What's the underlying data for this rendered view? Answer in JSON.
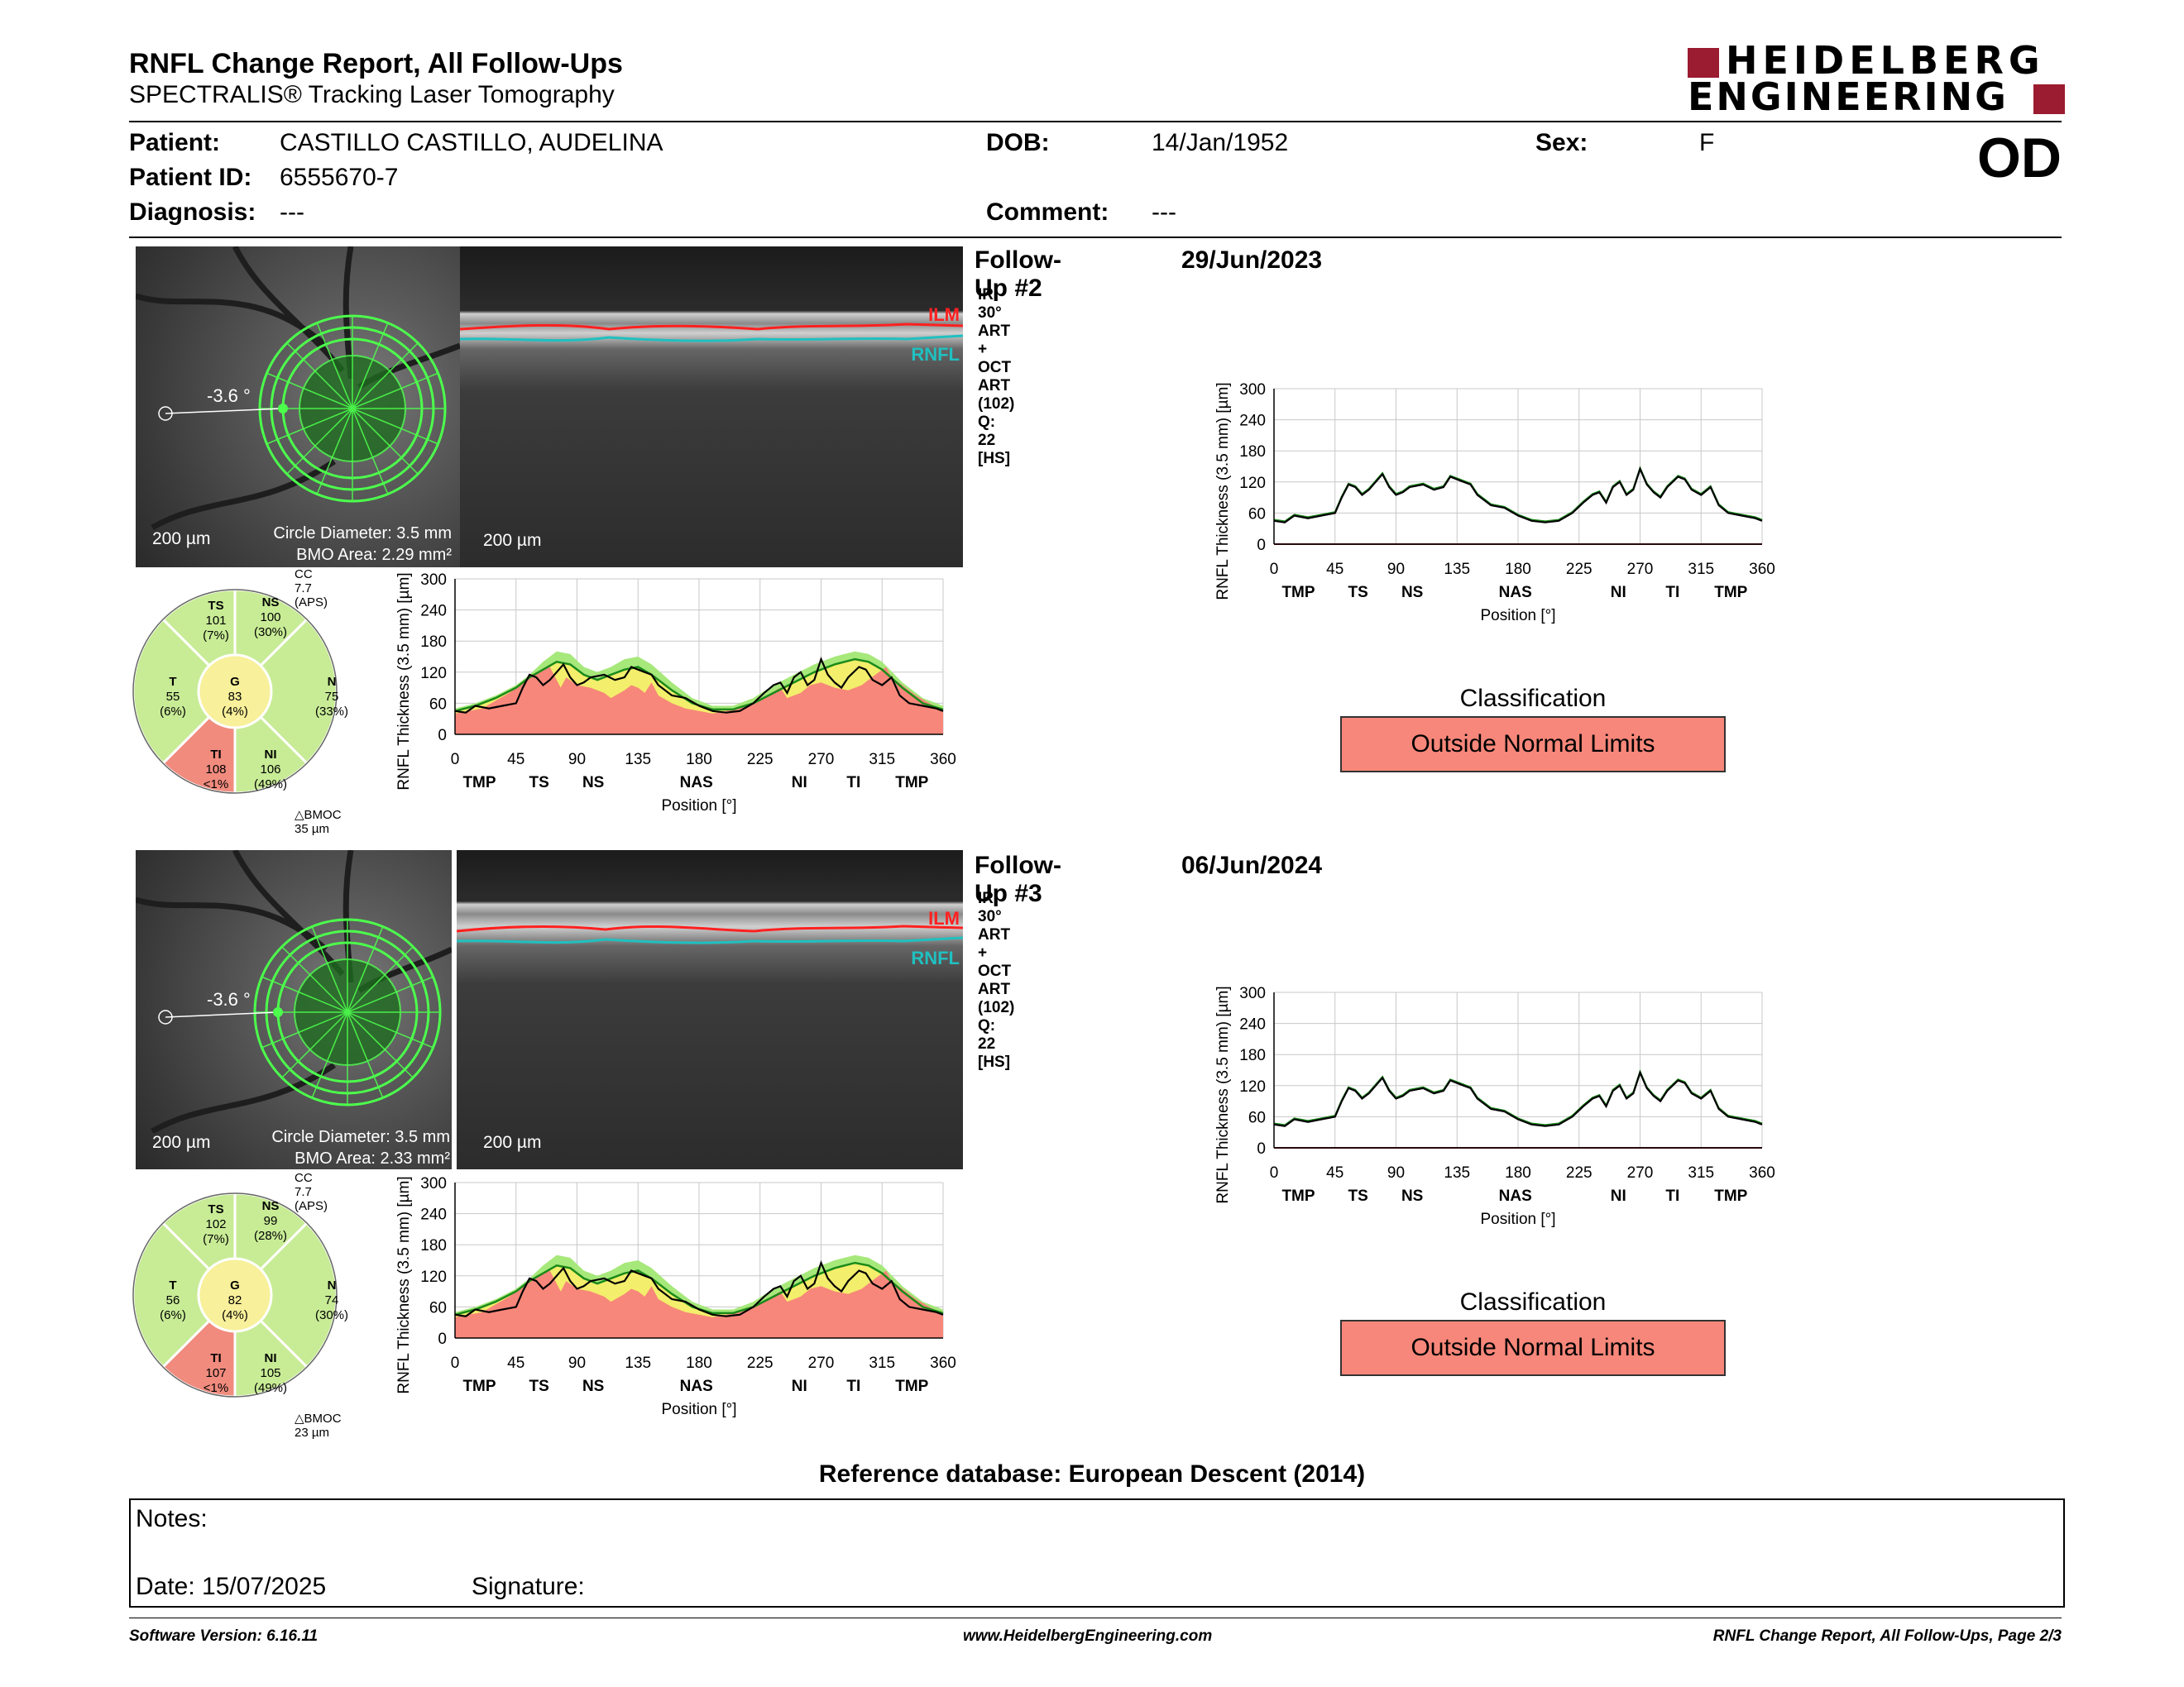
{
  "header": {
    "title": "RNFL Change Report, All Follow-Ups",
    "subtitle": "SPECTRALIS® Tracking Laser Tomography",
    "logo_line1": "HEIDELBERG",
    "logo_line2": "ENGINEERING",
    "eye": "OD"
  },
  "patient": {
    "patient_label": "Patient:",
    "patient_name": "CASTILLO CASTILLO, AUDELINA",
    "id_label": "Patient ID:",
    "id": "6555670-7",
    "diagnosis_label": "Diagnosis:",
    "diagnosis": "---",
    "dob_label": "DOB:",
    "dob": "14/Jan/1952",
    "comment_label": "Comment:",
    "comment": "---",
    "sex_label": "Sex:",
    "sex": "F"
  },
  "followups": [
    {
      "title": "Follow-Up #2",
      "date": "29/Jun/2023",
      "scan": "IR 30° ART + OCT ART (102) Q: 22 [HS]",
      "angle": "-3.6 °",
      "scale_fundus": "200 µm",
      "scale_oct": "200 µm",
      "circle_diameter": "Circle Diameter: 3.5 mm",
      "bmo_area": "BMO Area: 2.29 mm²",
      "ilm": "ILM",
      "rnfl": "RNFL",
      "cc": "CC 7.7 (APS)",
      "bmoc": "BMOC 35 µm",
      "sectors": {
        "TS": {
          "label": "TS",
          "value": "101",
          "pct": "(7%)"
        },
        "NS": {
          "label": "NS",
          "value": "100",
          "pct": "(30%)"
        },
        "T": {
          "label": "T",
          "value": "55",
          "pct": "(6%)"
        },
        "G": {
          "label": "G",
          "value": "83",
          "pct": "(4%)"
        },
        "N": {
          "label": "N",
          "value": "75",
          "pct": "(33%)"
        },
        "TI": {
          "label": "TI",
          "value": "108",
          "pct": "<1%"
        },
        "NI": {
          "label": "NI",
          "value": "106",
          "pct": "(49%)"
        }
      },
      "classification_title": "Classification",
      "classification": "Outside Normal Limits"
    },
    {
      "title": "Follow-Up #3",
      "date": "06/Jun/2024",
      "scan": "IR 30° ART + OCT ART (102) Q: 22 [HS]",
      "angle": "-3.6 °",
      "scale_fundus": "200 µm",
      "scale_oct": "200 µm",
      "circle_diameter": "Circle Diameter: 3.5 mm",
      "bmo_area": "BMO Area: 2.33 mm²",
      "ilm": "ILM",
      "rnfl": "RNFL",
      "cc": "CC 7.7 (APS)",
      "bmoc": "BMOC 23 µm",
      "sectors": {
        "TS": {
          "label": "TS",
          "value": "102",
          "pct": "(7%)"
        },
        "NS": {
          "label": "NS",
          "value": "99",
          "pct": "(28%)"
        },
        "T": {
          "label": "T",
          "value": "56",
          "pct": "(6%)"
        },
        "G": {
          "label": "G",
          "value": "82",
          "pct": "(4%)"
        },
        "N": {
          "label": "N",
          "value": "74",
          "pct": "(30%)"
        },
        "TI": {
          "label": "TI",
          "value": "107",
          "pct": "<1%"
        },
        "NI": {
          "label": "NI",
          "value": "105",
          "pct": "(49%)"
        }
      },
      "classification_title": "Classification",
      "classification": "Outside Normal Limits"
    }
  ],
  "chart_data": [
    {
      "type": "line",
      "ylabel": "RNFL Thickness (3.5 mm) [µm]",
      "xlabel": "Position [°]",
      "ylim": [
        0,
        300
      ],
      "xlim": [
        0,
        360
      ],
      "yticks": [
        0,
        60,
        120,
        180,
        240,
        300
      ],
      "xticks": [
        0,
        45,
        90,
        135,
        180,
        225,
        270,
        315,
        360
      ],
      "region_labels": [
        {
          "x": 18,
          "label": "TMP"
        },
        {
          "x": 62,
          "label": "TS"
        },
        {
          "x": 102,
          "label": "NS"
        },
        {
          "x": 178,
          "label": "NAS"
        },
        {
          "x": 254,
          "label": "NI"
        },
        {
          "x": 294,
          "label": "TI"
        },
        {
          "x": 337,
          "label": "TMP"
        }
      ],
      "series": [
        {
          "values": [
            [
              0,
              45
            ],
            [
              15,
              50
            ],
            [
              30,
              60
            ],
            [
              40,
              75
            ],
            [
              50,
              95
            ],
            [
              60,
              105
            ],
            [
              70,
              120
            ],
            [
              80,
              140
            ],
            [
              90,
              110
            ],
            [
              100,
              100
            ],
            [
              115,
              110
            ],
            [
              125,
              120
            ],
            [
              130,
              130
            ],
            [
              140,
              125
            ],
            [
              150,
              100
            ],
            [
              165,
              75
            ],
            [
              180,
              55
            ],
            [
              195,
              45
            ],
            [
              210,
              50
            ],
            [
              225,
              65
            ],
            [
              235,
              85
            ],
            [
              245,
              100
            ],
            [
              255,
              110
            ],
            [
              265,
              130
            ],
            [
              275,
              115
            ],
            [
              285,
              125
            ],
            [
              295,
              135
            ],
            [
              305,
              120
            ],
            [
              315,
              105
            ],
            [
              325,
              80
            ],
            [
              340,
              60
            ],
            [
              350,
              50
            ],
            [
              360,
              45
            ]
          ]
        },
        {
          "values": [
            [
              0,
              50
            ],
            [
              15,
              60
            ],
            [
              30,
              75
            ],
            [
              45,
              95
            ],
            [
              55,
              115
            ],
            [
              65,
              140
            ],
            [
              75,
              160
            ],
            [
              85,
              155
            ],
            [
              95,
              130
            ],
            [
              105,
              120
            ],
            [
              115,
              130
            ],
            [
              125,
              145
            ],
            [
              135,
              150
            ],
            [
              145,
              135
            ],
            [
              160,
              100
            ],
            [
              175,
              70
            ],
            [
              190,
              55
            ],
            [
              205,
              55
            ],
            [
              220,
              70
            ],
            [
              235,
              95
            ],
            [
              250,
              115
            ],
            [
              265,
              135
            ],
            [
              280,
              150
            ],
            [
              295,
              160
            ],
            [
              305,
              155
            ],
            [
              315,
              140
            ],
            [
              330,
              100
            ],
            [
              345,
              70
            ],
            [
              360,
              55
            ]
          ]
        },
        {
          "values": [
            [
              0,
              40
            ],
            [
              10,
              45
            ],
            [
              20,
              50
            ],
            [
              30,
              65
            ],
            [
              40,
              80
            ],
            [
              50,
              100
            ],
            [
              60,
              120
            ],
            [
              70,
              130
            ],
            [
              78,
              90
            ],
            [
              82,
              110
            ],
            [
              90,
              95
            ],
            [
              100,
              90
            ],
            [
              110,
              80
            ],
            [
              115,
              70
            ],
            [
              125,
              85
            ],
            [
              130,
              95
            ],
            [
              135,
              90
            ],
            [
              140,
              80
            ],
            [
              145,
              100
            ],
            [
              150,
              75
            ],
            [
              160,
              60
            ],
            [
              170,
              50
            ],
            [
              180,
              45
            ],
            [
              190,
              40
            ],
            [
              200,
              45
            ],
            [
              210,
              50
            ],
            [
              220,
              60
            ],
            [
              230,
              75
            ],
            [
              240,
              90
            ],
            [
              245,
              70
            ],
            [
              255,
              80
            ],
            [
              262,
              95
            ],
            [
              270,
              100
            ],
            [
              280,
              90
            ],
            [
              290,
              85
            ],
            [
              300,
              95
            ],
            [
              310,
              115
            ],
            [
              318,
              130
            ],
            [
              322,
              110
            ],
            [
              330,
              95
            ],
            [
              340,
              75
            ],
            [
              350,
              60
            ],
            [
              360,
              45
            ]
          ]
        },
        {
          "values": [
            [
              0,
              45
            ],
            [
              15,
              55
            ],
            [
              30,
              70
            ],
            [
              45,
              90
            ],
            [
              55,
              110
            ],
            [
              65,
              125
            ],
            [
              75,
              140
            ],
            [
              85,
              135
            ],
            [
              95,
              115
            ],
            [
              105,
              105
            ],
            [
              115,
              115
            ],
            [
              125,
              125
            ],
            [
              135,
              130
            ],
            [
              145,
              115
            ],
            [
              160,
              85
            ],
            [
              175,
              60
            ],
            [
              190,
              48
            ],
            [
              205,
              48
            ],
            [
              220,
              60
            ],
            [
              235,
              80
            ],
            [
              250,
              100
            ],
            [
              265,
              120
            ],
            [
              280,
              135
            ],
            [
              295,
              145
            ],
            [
              305,
              140
            ],
            [
              315,
              125
            ],
            [
              330,
              90
            ],
            [
              345,
              60
            ],
            [
              360,
              48
            ]
          ]
        },
        {
          "values": [
            [
              0,
              45
            ],
            [
              8,
              42
            ],
            [
              15,
              55
            ],
            [
              25,
              50
            ],
            [
              35,
              55
            ],
            [
              45,
              60
            ],
            [
              50,
              90
            ],
            [
              55,
              115
            ],
            [
              60,
              110
            ],
            [
              65,
              95
            ],
            [
              70,
              105
            ],
            [
              75,
              120
            ],
            [
              80,
              135
            ],
            [
              85,
              110
            ],
            [
              90,
              95
            ],
            [
              95,
              100
            ],
            [
              100,
              110
            ],
            [
              110,
              115
            ],
            [
              118,
              105
            ],
            [
              125,
              110
            ],
            [
              130,
              130
            ],
            [
              135,
              125
            ],
            [
              140,
              120
            ],
            [
              145,
              115
            ],
            [
              150,
              95
            ],
            [
              160,
              75
            ],
            [
              170,
              70
            ],
            [
              180,
              55
            ],
            [
              190,
              45
            ],
            [
              200,
              42
            ],
            [
              210,
              45
            ],
            [
              220,
              60
            ],
            [
              228,
              80
            ],
            [
              235,
              95
            ],
            [
              240,
              100
            ],
            [
              245,
              80
            ],
            [
              250,
              110
            ],
            [
              255,
              120
            ],
            [
              260,
              95
            ],
            [
              265,
              105
            ],
            [
              270,
              145
            ],
            [
              275,
              115
            ],
            [
              280,
              100
            ],
            [
              285,
              90
            ],
            [
              290,
              110
            ],
            [
              298,
              130
            ],
            [
              303,
              125
            ],
            [
              308,
              105
            ],
            [
              315,
              95
            ],
            [
              322,
              110
            ],
            [
              328,
              75
            ],
            [
              335,
              60
            ],
            [
              345,
              55
            ],
            [
              355,
              50
            ],
            [
              360,
              45
            ]
          ]
        }
      ]
    }
  ],
  "reference": "Reference database: European Descent (2014)",
  "notes": {
    "notes_label": "Notes:",
    "date_label": "Date: 15/07/2025",
    "signature_label": "Signature:"
  },
  "footer": {
    "software": "Software Version: 6.16.11",
    "website": "www.HeidelbergEngineering.com",
    "page": "RNFL Change Report, All Follow-Ups, Page 2/3"
  },
  "colors": {
    "logo_red": "#9b1b30",
    "ilm": "#ff2020",
    "rnfl": "#20c0c0",
    "green_band": "#a6e87a",
    "yellow_band": "#f3ee6b",
    "red_band": "#f7877a",
    "sector_green": "#c8ec96",
    "sector_yellow": "#f8f09a",
    "sector_red": "#f08b7e",
    "class_red": "#f7877a"
  }
}
